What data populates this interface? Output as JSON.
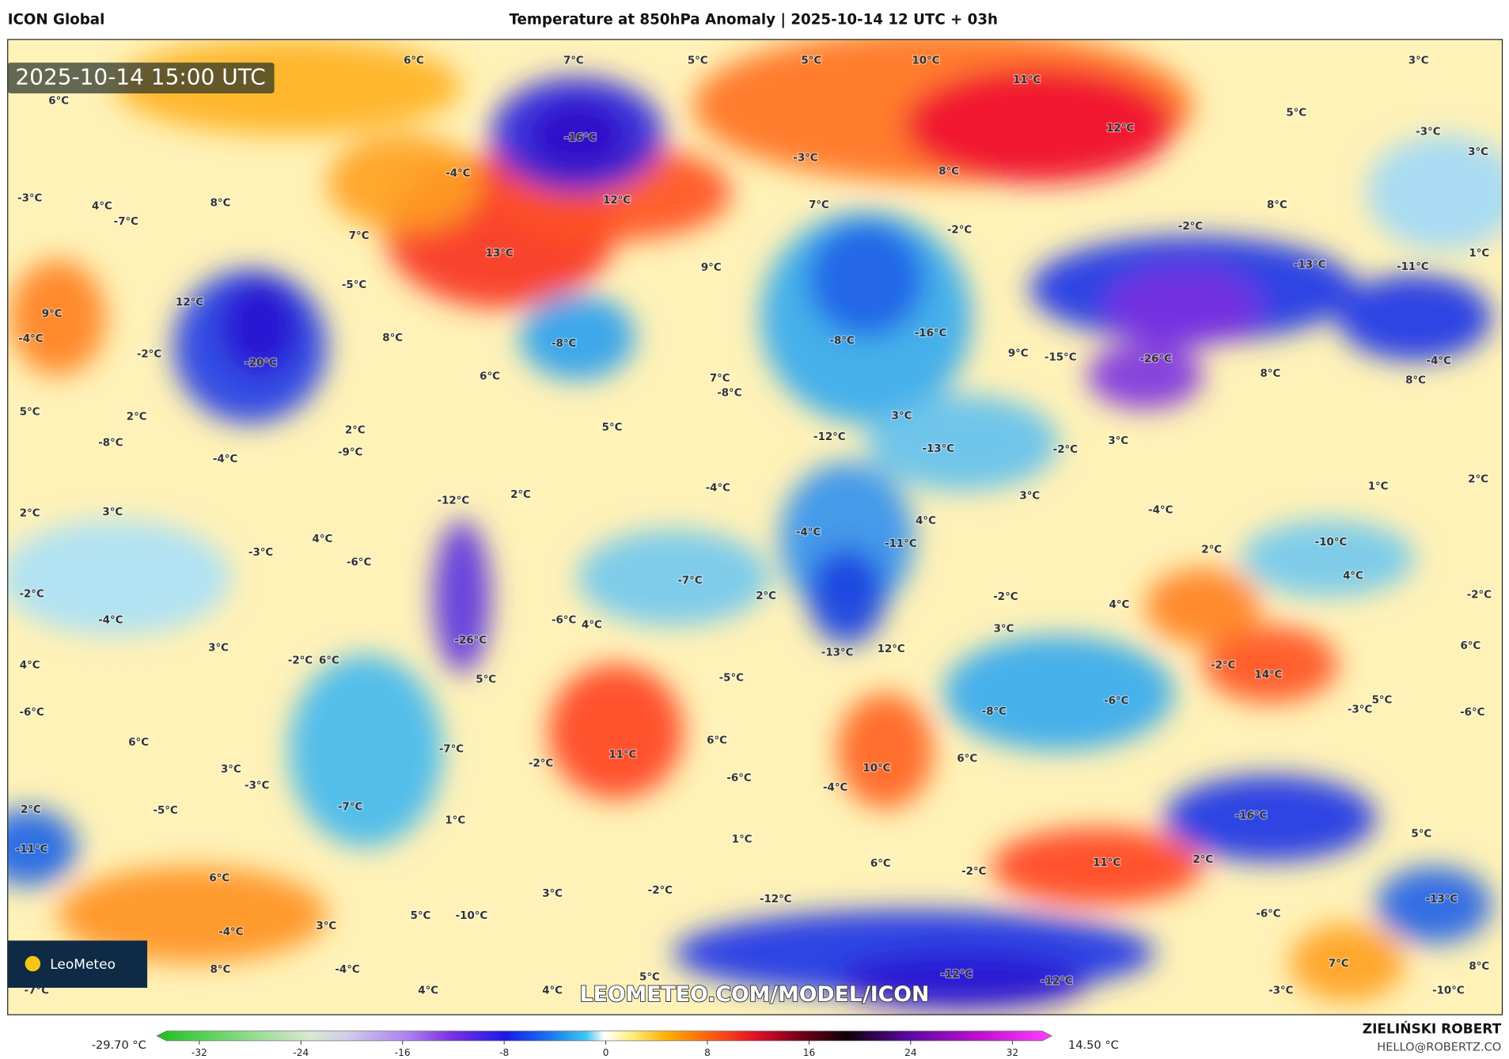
{
  "header": {
    "model": "ICON Global",
    "title": "Temperature at 850hPa Anomaly | 2025-10-14 12 UTC + 03h",
    "valid_time": "2025-10-14 15:00 UTC"
  },
  "map": {
    "watermark": "LEOMETEO.COM/MODEL/ICON",
    "logo": "LeoMeteo",
    "labels": [
      "6°C",
      "7°C",
      "5°C",
      "5°C",
      "10°C",
      "3°C",
      "11°C",
      "6°C",
      "5°C",
      "-16°C",
      "12°C",
      "-3°C",
      "3°C",
      "-3°C",
      "-4°C",
      "8°C",
      "-3°C",
      "4°C",
      "8°C",
      "12°C",
      "7°C",
      "8°C",
      "-7°C",
      "-2°C",
      "-2°C",
      "7°C",
      "1°C",
      "13°C",
      "-13°C",
      "-11°C",
      "9°C",
      "-5°C",
      "12°C",
      "9°C",
      "-4°C",
      "8°C",
      "-8°C",
      "-8°C",
      "-16°C",
      "-2°C",
      "9°C",
      "-15°C",
      "-26°C",
      "-20°C",
      "-4°C",
      "6°C",
      "7°C",
      "8°C",
      "8°C",
      "-8°C",
      "5°C",
      "2°C",
      "3°C",
      "5°C",
      "2°C",
      "-12°C",
      "-8°C",
      "-9°C",
      "-13°C",
      "-2°C",
      "3°C",
      "-4°C",
      "2°C",
      "1°C",
      "-4°C",
      "3°C",
      "2°C",
      "3°C",
      "-12°C",
      "2°C",
      "-4°C",
      "4°C",
      "-4°C",
      "4°C",
      "-11°C",
      "-10°C",
      "2°C",
      "-3°C",
      "-6°C",
      "4°C",
      "-7°C",
      "-2°C",
      "2°C",
      "-2°C",
      "-2°C",
      "4°C",
      "-4°C",
      "-6°C",
      "4°C",
      "3°C",
      "-26°C",
      "3°C",
      "-13°C",
      "12°C",
      "6°C",
      "4°C",
      "-2°C",
      "6°C",
      "-2°C",
      "14°C",
      "5°C",
      "-5°C",
      "-6°C",
      "5°C",
      "-8°C",
      "-3°C",
      "-6°C",
      "-6°C",
      "6°C",
      "6°C",
      "-7°C",
      "11°C",
      "6°C",
      "3°C",
      "-2°C",
      "10°C",
      "-6°C",
      "-3°C",
      "-4°C",
      "-7°C",
      "2°C",
      "-5°C",
      "-16°C",
      "1°C",
      "5°C",
      "1°C",
      "-11°C",
      "6°C",
      "11°C",
      "2°C",
      "-2°C",
      "6°C",
      "-2°C",
      "3°C",
      "-12°C",
      "-13°C",
      "-10°C",
      "5°C",
      "-6°C",
      "3°C",
      "-4°C",
      "8°C",
      "-4°C",
      "7°C",
      "8°C",
      "-12°C",
      "-12°C",
      "5°C",
      "-7°C",
      "4°C",
      "4°C",
      "-3°C",
      "-10°C"
    ]
  },
  "legend": {
    "min_label": "-29.70 °C",
    "max_label": "14.50 °C",
    "ticks": [
      -32,
      -24,
      -16,
      -8,
      0,
      8,
      16,
      24,
      32
    ]
  },
  "footer": {
    "author": "ZIELIŃSKI ROBERT",
    "email": "HELLO@ROBERTZ.CO"
  }
}
